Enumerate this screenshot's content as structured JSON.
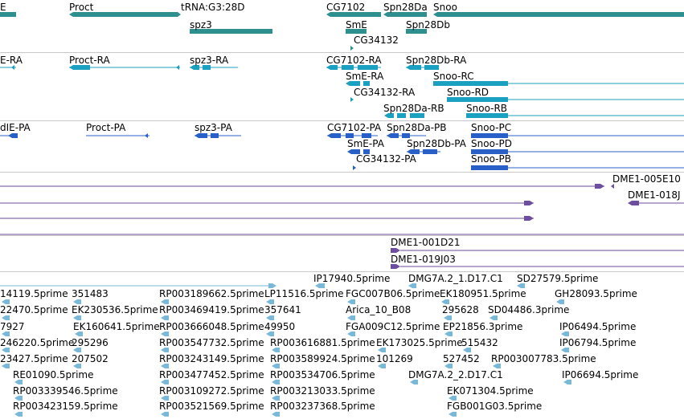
{
  "colors": {
    "gene": "#2e8f8f",
    "transcript": "#1aa0c0",
    "protein": "#2860c8",
    "clone": "#6e4e9e",
    "est": "#7ab8d8",
    "separator": "#c8c8c8"
  },
  "tracks": {
    "gene": {
      "labels": [
        "E",
        "Proct",
        "tRNA:G3:28D",
        "spz3",
        "CG7102",
        "Spn28Da",
        "Snoo",
        "SmE",
        "Spn28Db",
        "CG34132"
      ]
    },
    "transcript": {
      "labels": [
        "E-RA",
        "Proct-RA",
        "spz3-RA",
        "CG7102-RA",
        "Spn28Db-RA",
        "SmE-RA",
        "Snoo-RC",
        "CG34132-RA",
        "Snoo-RD",
        "Spn28Da-RB",
        "Snoo-RB"
      ]
    },
    "protein": {
      "labels": [
        "dIE-PA",
        "Proct-PA",
        "spz3-PA",
        "CG7102-PA",
        "Spn28Da-PB",
        "Snoo-PC",
        "SmE-PA",
        "Spn28Db-PA",
        "Snoo-PD",
        "CG34132-PA",
        "Snoo-PB"
      ]
    },
    "clone": {
      "labels": [
        "DME1-005E10",
        "DME1-018J",
        "DME1-001D21",
        "DME1-019J03"
      ]
    },
    "est": {
      "labels": [
        "IP17940.5prime",
        "DMG7A.2_1.D17.C1",
        "SD27579.5prime",
        "14119.5prime",
        "351483",
        "RP003189662.5prime",
        "LP11516.5prime",
        "FGC007B06.5prime",
        "EK180951.5prime",
        "GH28093.5prime",
        "22470.5prime",
        "EK230536.5prime",
        "RP003469419.5prime",
        "357641",
        "Arica_10_B08",
        "295628",
        "SD04486.3prime",
        "7927",
        "EK160641.5prime",
        "RP003666048.5prime",
        "49950",
        "FGA009C12.5prime",
        "EP21856.3prime",
        "IP06494.5prime",
        "246220.5prime",
        "295296",
        "RP003547732.5prime",
        "RP003616881.5prime",
        "EK173025.5prime",
        "515432",
        "IP06794.5prime",
        "23427.5prime",
        "207502",
        "RP003243149.5prime",
        "RP003589924.5prime",
        "101269",
        "527452",
        "RP003007783.5prime",
        "RE01090.5prime",
        "RP003477452.5prime",
        "RP003534706.5prime",
        "DMG7A.2_2.D17.C1",
        "IP06694.5prime",
        "RP003339546.5prime",
        "RP003109272.5prime",
        "RP003213033.5prime",
        "EK071304.5prime",
        "RP003423159.5prime",
        "RP003521569.5prime",
        "RP003237368.5prime",
        "FGB001G03.5prime"
      ]
    }
  }
}
